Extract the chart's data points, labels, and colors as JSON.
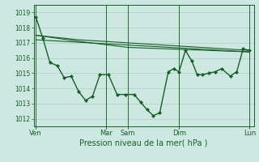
{
  "bg_color": "#cde8e0",
  "grid_color": "#a8d0c4",
  "line_color": "#1a5c2a",
  "xlabel": "Pression niveau de la mer( hPa )",
  "ylim": [
    1011.5,
    1019.5
  ],
  "yticks": [
    1012,
    1013,
    1014,
    1015,
    1016,
    1017,
    1018,
    1019
  ],
  "day_positions": [
    0.0,
    0.33,
    0.43,
    0.67,
    1.0
  ],
  "day_labels": [
    "Ven",
    "Mar",
    "Sam",
    "Dim",
    "Lun"
  ],
  "series_main": {
    "x": [
      0.0,
      0.033,
      0.066,
      0.1,
      0.133,
      0.166,
      0.2,
      0.233,
      0.266,
      0.3,
      0.34,
      0.38,
      0.42,
      0.46,
      0.49,
      0.52,
      0.55,
      0.58,
      0.62,
      0.645,
      0.67,
      0.7,
      0.73,
      0.755,
      0.78,
      0.81,
      0.84,
      0.87,
      0.91,
      0.94,
      0.97,
      1.0
    ],
    "y": [
      1018.7,
      1017.3,
      1015.7,
      1015.5,
      1014.7,
      1014.8,
      1013.8,
      1013.2,
      1013.5,
      1014.9,
      1014.9,
      1013.6,
      1013.6,
      1013.6,
      1013.1,
      1012.6,
      1012.2,
      1012.4,
      1015.1,
      1015.3,
      1015.1,
      1016.5,
      1015.8,
      1014.9,
      1014.9,
      1015.0,
      1015.1,
      1015.3,
      1014.8,
      1015.1,
      1016.6,
      1016.5
    ]
  },
  "series_line1": {
    "x": [
      0.0,
      0.2,
      0.43,
      1.0
    ],
    "y": [
      1017.5,
      1017.2,
      1017.0,
      1016.5
    ]
  },
  "series_line2": {
    "x": [
      0.0,
      0.2,
      0.43,
      1.0
    ],
    "y": [
      1017.5,
      1017.1,
      1016.7,
      1016.4
    ]
  },
  "series_line3": {
    "x": [
      0.0,
      1.0
    ],
    "y": [
      1017.2,
      1016.4
    ]
  },
  "figsize": [
    3.2,
    2.0
  ],
  "dpi": 100
}
